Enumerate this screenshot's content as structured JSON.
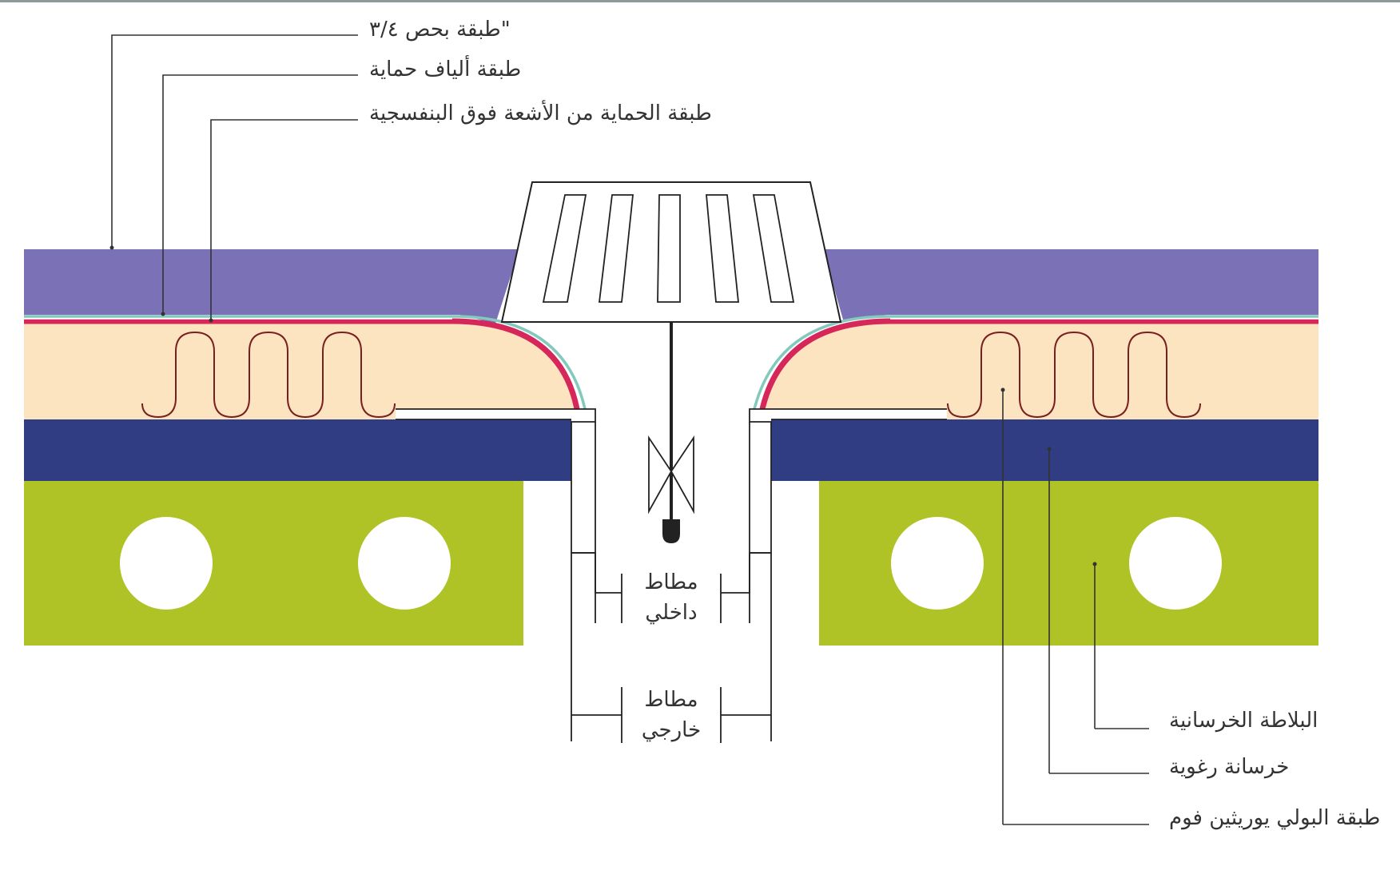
{
  "labels": {
    "gravel": "طبقة بحص ٣/٤\"",
    "fiber": "طبقة ألياف حماية",
    "uv": "طبقة الحماية من الأشعة فوق البنفسجية",
    "slab": "البلاطة الخرسانية",
    "foam_concrete": "خرسانة رغوية",
    "pu_foam": "طبقة البولي يوريثين فوم"
  },
  "drain": {
    "inner_line1": "مطاط",
    "inner_line2": "داخلي",
    "outer_line1": "مطاط",
    "outer_line2": "خارجي"
  },
  "colors": {
    "gravel": "#7b71b6",
    "fiber": "#83c9bd",
    "uv": "#d6275b",
    "pu_foam": "#fbe4bf",
    "foam_concrete": "#313d82",
    "slab": "#afc326",
    "coil": "#7a1f1f"
  }
}
